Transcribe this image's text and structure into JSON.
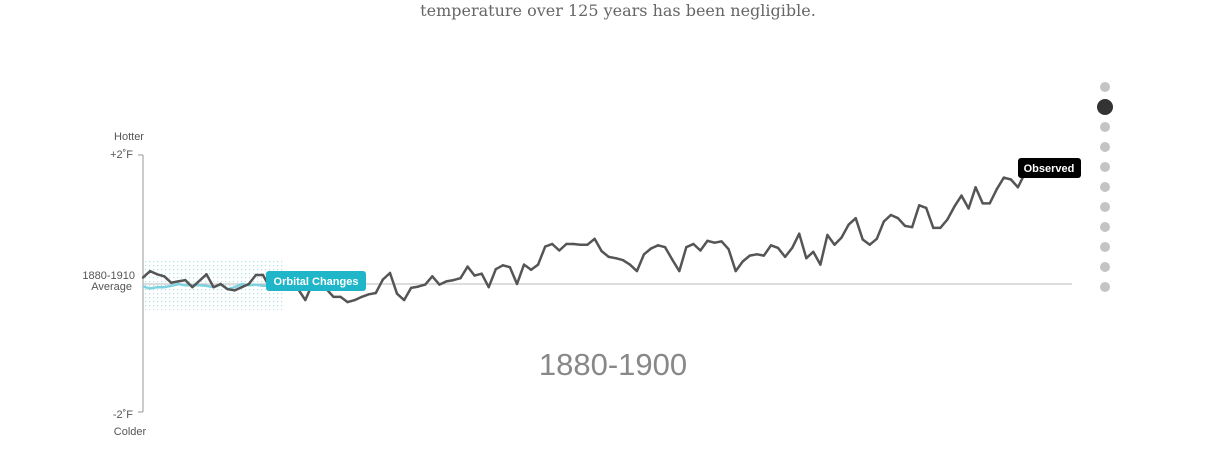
{
  "intro": {
    "text": "temperature over 125 years has been negligible."
  },
  "colors": {
    "observed_line": "#555555",
    "orbital_line": "#7fd3e0",
    "orbital_band": "#9fdde6",
    "orbital_tag": "#1fb6c9",
    "observed_tag": "#000000",
    "baseline": "#bbbbbb",
    "dot_inactive": "#c4c4c4",
    "dot_active": "#333333"
  },
  "nav": {
    "dot_count": 11,
    "active_index": 1
  },
  "chart_data": {
    "type": "line",
    "y_top_word": "Hotter",
    "y_bottom_word": "Colder",
    "y_max_label": "+2˚F",
    "y_min_label": "-2˚F",
    "baseline_label_line1": "1880-1910",
    "baseline_label_line2": "Average",
    "period_label": "1880-1900",
    "ylim": [
      -2,
      2
    ],
    "xlim": [
      1880,
      2005
    ],
    "grid": false,
    "series": [
      {
        "name": "Observed",
        "x": [
          1880,
          1881,
          1882,
          1883,
          1884,
          1885,
          1886,
          1887,
          1888,
          1889,
          1890,
          1891,
          1892,
          1893,
          1894,
          1895,
          1896,
          1897,
          1898,
          1899,
          1900,
          1901,
          1902,
          1903,
          1904,
          1905,
          1906,
          1907,
          1908,
          1909,
          1910,
          1911,
          1912,
          1913,
          1914,
          1915,
          1916,
          1917,
          1918,
          1919,
          1920,
          1921,
          1922,
          1923,
          1924,
          1925,
          1926,
          1927,
          1928,
          1929,
          1930,
          1931,
          1932,
          1933,
          1934,
          1935,
          1936,
          1937,
          1938,
          1939,
          1940,
          1941,
          1942,
          1943,
          1944,
          1945,
          1946,
          1947,
          1948,
          1949,
          1950,
          1951,
          1952,
          1953,
          1954,
          1955,
          1956,
          1957,
          1958,
          1959,
          1960,
          1961,
          1962,
          1963,
          1964,
          1965,
          1966,
          1967,
          1968,
          1969,
          1970,
          1971,
          1972,
          1973,
          1974,
          1975,
          1976,
          1977,
          1978,
          1979,
          1980,
          1981,
          1982,
          1983,
          1984,
          1985,
          1986,
          1987,
          1988,
          1989,
          1990,
          1991,
          1992,
          1993,
          1994,
          1995,
          1996,
          1997,
          1998,
          1999,
          2000,
          2001,
          2002,
          2003,
          2004,
          2005
        ],
        "y": [
          0.1,
          0.2,
          0.15,
          0.12,
          0.02,
          0.04,
          0.06,
          -0.05,
          0.05,
          0.15,
          -0.05,
          0.0,
          -0.08,
          -0.1,
          -0.05,
          0.0,
          0.14,
          0.14,
          -0.06,
          0.06,
          0.12,
          0.0,
          -0.08,
          -0.25,
          0.0,
          -0.08,
          -0.08,
          -0.2,
          -0.2,
          -0.28,
          -0.25,
          -0.2,
          -0.16,
          -0.14,
          0.07,
          0.17,
          -0.15,
          -0.25,
          -0.06,
          -0.04,
          -0.01,
          0.12,
          -0.01,
          0.04,
          0.06,
          0.09,
          0.27,
          0.13,
          0.16,
          -0.05,
          0.23,
          0.29,
          0.26,
          0.0,
          0.3,
          0.22,
          0.3,
          0.58,
          0.62,
          0.52,
          0.62,
          0.62,
          0.61,
          0.61,
          0.7,
          0.51,
          0.42,
          0.4,
          0.37,
          0.3,
          0.2,
          0.46,
          0.55,
          0.6,
          0.57,
          0.38,
          0.2,
          0.57,
          0.62,
          0.52,
          0.67,
          0.64,
          0.66,
          0.54,
          0.2,
          0.35,
          0.44,
          0.46,
          0.44,
          0.6,
          0.56,
          0.42,
          0.56,
          0.78,
          0.4,
          0.5,
          0.3,
          0.76,
          0.61,
          0.72,
          0.92,
          1.02,
          0.69,
          0.61,
          0.7,
          0.97,
          1.07,
          1.02,
          0.9,
          0.88,
          1.22,
          1.18,
          0.87,
          0.87,
          1.0,
          1.2,
          1.37,
          1.17,
          1.5,
          1.25,
          1.25,
          1.47,
          1.65,
          1.62,
          1.5,
          1.72
        ]
      },
      {
        "name": "Orbital Changes",
        "x": [
          1880,
          1881,
          1882,
          1883,
          1884,
          1885,
          1886,
          1887,
          1888,
          1889,
          1890,
          1891,
          1892,
          1893,
          1894,
          1895,
          1896,
          1897,
          1898,
          1899,
          1900
        ],
        "y": [
          -0.04,
          -0.07,
          -0.05,
          -0.05,
          -0.03,
          0.0,
          -0.02,
          -0.02,
          -0.02,
          -0.03,
          -0.05,
          -0.01,
          -0.08,
          -0.05,
          0.0,
          -0.02,
          -0.01,
          -0.03,
          -0.02,
          0.0,
          0.01
        ],
        "band_upper": [
          0.4,
          0.4,
          0.4,
          0.4,
          0.4,
          0.4,
          0.4,
          0.4,
          0.4,
          0.4,
          0.4,
          0.4,
          0.4,
          0.4,
          0.4,
          0.4,
          0.4,
          0.4,
          0.4,
          0.4,
          0.4
        ],
        "band_lower": [
          -0.4,
          -0.4,
          -0.4,
          -0.4,
          -0.4,
          -0.4,
          -0.4,
          -0.4,
          -0.4,
          -0.4,
          -0.4,
          -0.4,
          -0.4,
          -0.4,
          -0.4,
          -0.4,
          -0.4,
          -0.4,
          -0.4,
          -0.4,
          -0.4
        ]
      }
    ]
  }
}
